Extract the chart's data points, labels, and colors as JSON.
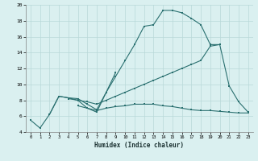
{
  "xlabel": "Humidex (Indice chaleur)",
  "bg_color": "#daf0f0",
  "grid_color": "#b8d8d8",
  "line_color": "#2a7070",
  "xlim": [
    -0.5,
    23.5
  ],
  "ylim": [
    4,
    20
  ],
  "xticks": [
    0,
    1,
    2,
    3,
    4,
    5,
    6,
    7,
    8,
    9,
    10,
    11,
    12,
    13,
    14,
    15,
    16,
    17,
    18,
    19,
    20,
    21,
    22,
    23
  ],
  "yticks": [
    4,
    6,
    8,
    10,
    12,
    14,
    16,
    18,
    20
  ],
  "series": [
    {
      "x": [
        0,
        1,
        2,
        3,
        4,
        5,
        6,
        7,
        8,
        9,
        10,
        11,
        12,
        13,
        14,
        15,
        16,
        17,
        18,
        19
      ],
      "y": [
        5.5,
        4.5,
        6.2,
        8.5,
        8.3,
        8.2,
        7.5,
        6.8,
        9.0,
        11.0,
        13.0,
        15.0,
        17.3,
        17.5,
        19.3,
        19.3,
        19.0,
        18.3,
        17.5,
        15.0
      ]
    },
    {
      "x": [
        4,
        5,
        6,
        7,
        8,
        9,
        10,
        11,
        12,
        13,
        14,
        15,
        16,
        17,
        18,
        19,
        20
      ],
      "y": [
        8.2,
        8.0,
        7.8,
        7.5,
        8.0,
        8.5,
        9.0,
        9.5,
        10.0,
        10.5,
        11.0,
        11.5,
        12.0,
        12.5,
        13.0,
        14.8,
        15.0
      ]
    },
    {
      "x": [
        2,
        3,
        4,
        5,
        6,
        7,
        8,
        9
      ],
      "y": [
        6.2,
        8.5,
        8.3,
        8.0,
        7.0,
        6.5,
        9.0,
        11.5
      ]
    },
    {
      "x": [
        5,
        6,
        7,
        8,
        9,
        10,
        11,
        12,
        13,
        14,
        15,
        16,
        17,
        18,
        19,
        20,
        21,
        22,
        23
      ],
      "y": [
        7.3,
        7.0,
        6.7,
        7.0,
        7.2,
        7.3,
        7.5,
        7.5,
        7.5,
        7.3,
        7.2,
        7.0,
        6.8,
        6.7,
        6.7,
        6.6,
        6.5,
        6.4,
        6.4
      ]
    },
    {
      "x": [
        19,
        20,
        21,
        22,
        23
      ],
      "y": [
        15.0,
        15.0,
        9.8,
        7.8,
        6.5
      ]
    }
  ]
}
